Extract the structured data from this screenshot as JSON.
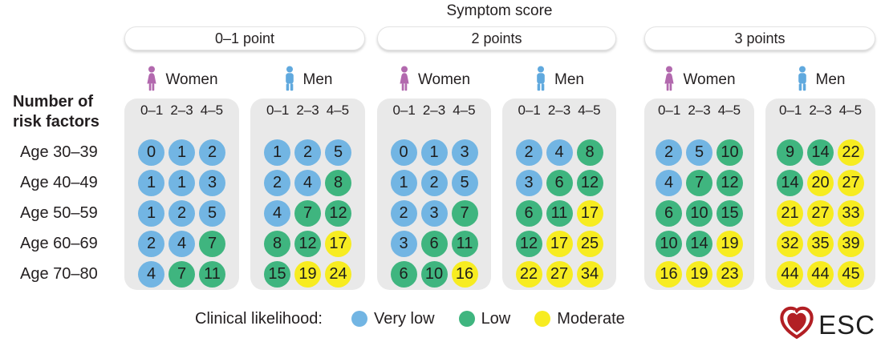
{
  "title": "Symptom score",
  "left_header": {
    "line1": "Number of",
    "line2": "risk factors"
  },
  "logo": {
    "text": "ESC"
  },
  "colors": {
    "very_low": "#72b5e3",
    "low": "#3fb57f",
    "moderate": "#f7ec21",
    "women_icon": "#b269ae",
    "men_icon": "#60a9de",
    "panel_background": "#e9e9e9",
    "heart_red": "#b21f24"
  },
  "chart_data": {
    "type": "heatmap",
    "title": "Symptom score",
    "row_axis_label": "Number of risk factors",
    "legend_title": "Clinical likelihood:",
    "levels": {
      "VL": {
        "label": "Very low",
        "color": "#72b5e3"
      },
      "L": {
        "label": "Low",
        "color": "#3fb57f"
      },
      "M": {
        "label": "Moderate",
        "color": "#f7ec21"
      }
    },
    "level_order": [
      "VL",
      "L",
      "M"
    ],
    "genders": [
      "Women",
      "Men"
    ],
    "risk_factor_bins": [
      "0–1",
      "2–3",
      "4–5"
    ],
    "row_labels": [
      "Age 30–39",
      "Age 40–49",
      "Age 50–59",
      "Age 60–69",
      "Age 70–80"
    ],
    "groups": [
      {
        "label": "0–1 point",
        "women": [
          [
            [
              0,
              "VL"
            ],
            [
              1,
              "VL"
            ],
            [
              2,
              "VL"
            ]
          ],
          [
            [
              1,
              "VL"
            ],
            [
              1,
              "VL"
            ],
            [
              3,
              "VL"
            ]
          ],
          [
            [
              1,
              "VL"
            ],
            [
              2,
              "VL"
            ],
            [
              5,
              "VL"
            ]
          ],
          [
            [
              2,
              "VL"
            ],
            [
              4,
              "VL"
            ],
            [
              7,
              "L"
            ]
          ],
          [
            [
              4,
              "VL"
            ],
            [
              7,
              "L"
            ],
            [
              11,
              "L"
            ]
          ]
        ],
        "men": [
          [
            [
              1,
              "VL"
            ],
            [
              2,
              "VL"
            ],
            [
              5,
              "VL"
            ]
          ],
          [
            [
              2,
              "VL"
            ],
            [
              4,
              "VL"
            ],
            [
              8,
              "L"
            ]
          ],
          [
            [
              4,
              "VL"
            ],
            [
              7,
              "L"
            ],
            [
              12,
              "L"
            ]
          ],
          [
            [
              8,
              "L"
            ],
            [
              12,
              "L"
            ],
            [
              17,
              "M"
            ]
          ],
          [
            [
              15,
              "L"
            ],
            [
              19,
              "M"
            ],
            [
              24,
              "M"
            ]
          ]
        ]
      },
      {
        "label": "2 points",
        "women": [
          [
            [
              0,
              "VL"
            ],
            [
              1,
              "VL"
            ],
            [
              3,
              "VL"
            ]
          ],
          [
            [
              1,
              "VL"
            ],
            [
              2,
              "VL"
            ],
            [
              5,
              "VL"
            ]
          ],
          [
            [
              2,
              "VL"
            ],
            [
              3,
              "VL"
            ],
            [
              7,
              "L"
            ]
          ],
          [
            [
              3,
              "VL"
            ],
            [
              6,
              "L"
            ],
            [
              11,
              "L"
            ]
          ],
          [
            [
              6,
              "L"
            ],
            [
              10,
              "L"
            ],
            [
              16,
              "M"
            ]
          ]
        ],
        "men": [
          [
            [
              2,
              "VL"
            ],
            [
              4,
              "VL"
            ],
            [
              8,
              "L"
            ]
          ],
          [
            [
              3,
              "VL"
            ],
            [
              6,
              "L"
            ],
            [
              12,
              "L"
            ]
          ],
          [
            [
              6,
              "L"
            ],
            [
              11,
              "L"
            ],
            [
              17,
              "M"
            ]
          ],
          [
            [
              12,
              "L"
            ],
            [
              17,
              "M"
            ],
            [
              25,
              "M"
            ]
          ],
          [
            [
              22,
              "M"
            ],
            [
              27,
              "M"
            ],
            [
              34,
              "M"
            ]
          ]
        ]
      },
      {
        "label": "3 points",
        "women": [
          [
            [
              2,
              "VL"
            ],
            [
              5,
              "VL"
            ],
            [
              10,
              "L"
            ]
          ],
          [
            [
              4,
              "VL"
            ],
            [
              7,
              "L"
            ],
            [
              12,
              "L"
            ]
          ],
          [
            [
              6,
              "L"
            ],
            [
              10,
              "L"
            ],
            [
              15,
              "L"
            ]
          ],
          [
            [
              10,
              "L"
            ],
            [
              14,
              "L"
            ],
            [
              19,
              "M"
            ]
          ],
          [
            [
              16,
              "M"
            ],
            [
              19,
              "M"
            ],
            [
              23,
              "M"
            ]
          ]
        ],
        "men": [
          [
            [
              9,
              "L"
            ],
            [
              14,
              "L"
            ],
            [
              22,
              "M"
            ]
          ],
          [
            [
              14,
              "L"
            ],
            [
              20,
              "M"
            ],
            [
              27,
              "M"
            ]
          ],
          [
            [
              21,
              "M"
            ],
            [
              27,
              "M"
            ],
            [
              33,
              "M"
            ]
          ],
          [
            [
              32,
              "M"
            ],
            [
              35,
              "M"
            ],
            [
              39,
              "M"
            ]
          ],
          [
            [
              44,
              "M"
            ],
            [
              44,
              "M"
            ],
            [
              45,
              "M"
            ]
          ]
        ]
      }
    ]
  }
}
